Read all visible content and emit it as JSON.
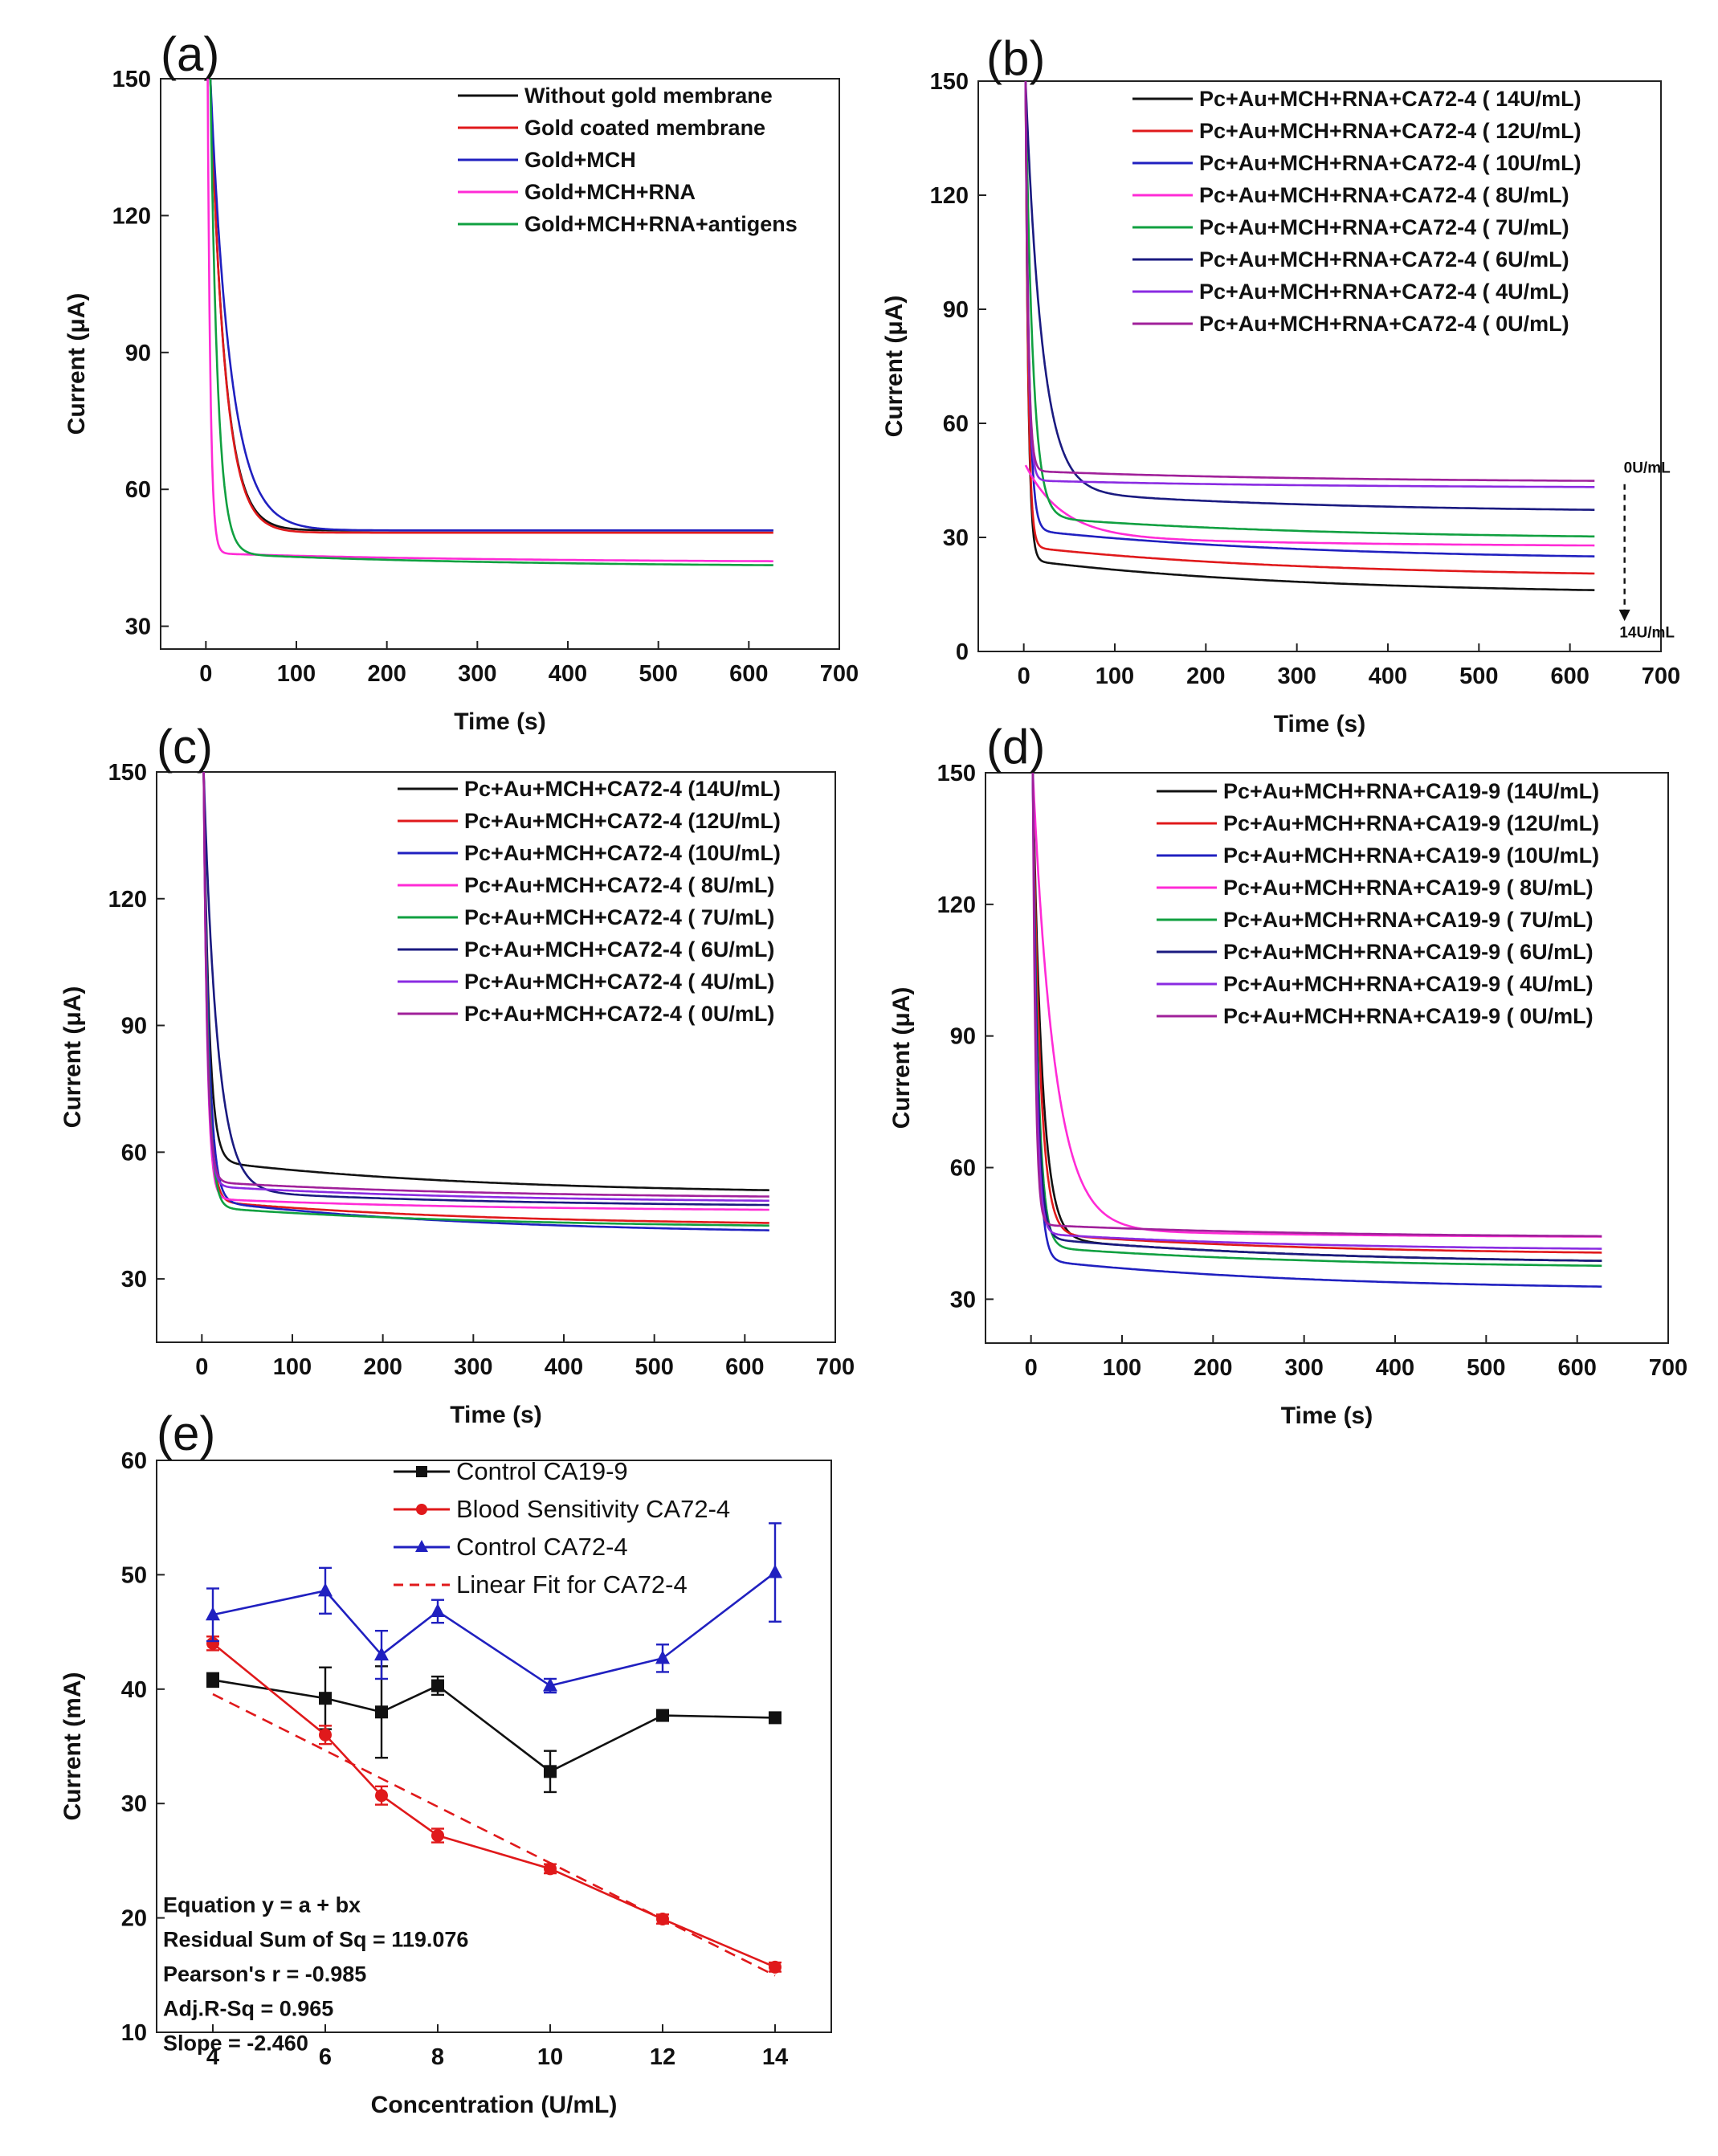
{
  "chart_data": [
    {
      "id": "a",
      "type": "line",
      "letter": "(a)",
      "xlabel": "Time (s)",
      "ylabel": "Current (μA)",
      "xlim": [
        -50,
        700
      ],
      "ylim": [
        25,
        150
      ],
      "xticks": [
        0,
        100,
        200,
        300,
        400,
        500,
        600,
        700
      ],
      "yticks": [
        30,
        60,
        90,
        120,
        150
      ],
      "legend_position": "top-right",
      "series": [
        {
          "name": "Without gold membrane",
          "color": "#111111",
          "x0": 5,
          "peak": 150,
          "plateau": 51,
          "tau": 16,
          "drift": 0
        },
        {
          "name": "Gold coated membrane",
          "color": "#e0191b",
          "x0": 5,
          "peak": 150,
          "plateau": 50.5,
          "tau": 16,
          "drift": 0
        },
        {
          "name": "Gold+MCH",
          "color": "#2020c0",
          "x0": 5,
          "peak": 150,
          "plateau": 51,
          "tau": 22,
          "drift": 0
        },
        {
          "name": "Gold+MCH+RNA",
          "color": "#ff2bd6",
          "x0": 2,
          "peak": 150,
          "plateau": 44,
          "tau": 3,
          "drift": 2
        },
        {
          "name": "Gold+MCH+RNA+antigens",
          "color": "#10a040",
          "x0": 5,
          "peak": 150,
          "plateau": 43,
          "tau": 8,
          "drift": 3
        }
      ]
    },
    {
      "id": "b",
      "type": "line",
      "letter": "(b)",
      "xlabel": "Time (s)",
      "ylabel": "Current (μA)",
      "xlim": [
        -50,
        700
      ],
      "ylim": [
        0,
        150
      ],
      "xticks": [
        0,
        100,
        200,
        300,
        400,
        500,
        600,
        700
      ],
      "yticks": [
        0,
        30,
        60,
        90,
        120,
        150
      ],
      "legend_position": "top-right",
      "annotation_top": "0U/mL",
      "annotation_bottom": "14U/mL",
      "series": [
        {
          "name": "Pc+Au+MCH+RNA+CA72-4 ( 14U/mL)",
          "color": "#111111",
          "x0": 2,
          "peak": 150,
          "plateau": 15,
          "tau": 3,
          "drift": 9
        },
        {
          "name": "Pc+Au+MCH+RNA+CA72-4 ( 12U/mL)",
          "color": "#e0191b",
          "x0": 2,
          "peak": 150,
          "plateau": 19.5,
          "tau": 3,
          "drift": 8
        },
        {
          "name": "Pc+Au+MCH+RNA+CA72-4 ( 10U/mL)",
          "color": "#2020c0",
          "x0": 2,
          "peak": 150,
          "plateau": 24,
          "tau": 4,
          "drift": 8
        },
        {
          "name": "Pc+Au+MCH+RNA+CA72-4 (  8U/mL)",
          "color": "#ff2bd6",
          "x0": 2,
          "peak": 49,
          "plateau": 27.5,
          "tau": 40,
          "drift": 3
        },
        {
          "name": "Pc+Au+MCH+RNA+CA72-4 (  7U/mL)",
          "color": "#10a040",
          "x0": 2,
          "peak": 150,
          "plateau": 29.5,
          "tau": 8,
          "drift": 6
        },
        {
          "name": "Pc+Au+MCH+RNA+CA72-4 (  6U/mL)",
          "color": "#1a1a80",
          "x0": 2,
          "peak": 150,
          "plateau": 36.5,
          "tau": 18,
          "drift": 6
        },
        {
          "name": "Pc+Au+MCH+RNA+CA72-4 (  4U/mL)",
          "color": "#8a2be2",
          "x0": 2,
          "peak": 150,
          "plateau": 43,
          "tau": 3,
          "drift": 2
        },
        {
          "name": "Pc+Au+MCH+RNA+CA72-4 (  0U/mL)",
          "color": "#a0209a",
          "x0": 2,
          "peak": 150,
          "plateau": 44.5,
          "tau": 3,
          "drift": 3
        }
      ]
    },
    {
      "id": "c",
      "type": "line",
      "letter": "(c)",
      "xlabel": "Time (s)",
      "ylabel": "Current (μA)",
      "xlim": [
        -50,
        700
      ],
      "ylim": [
        15,
        150
      ],
      "xticks": [
        0,
        100,
        200,
        300,
        400,
        500,
        600,
        700
      ],
      "yticks": [
        30,
        60,
        90,
        120,
        150
      ],
      "legend_position": "top-right",
      "series": [
        {
          "name": "Pc+Au+MCH+CA72-4 (14U/mL)",
          "color": "#111111",
          "x0": 2,
          "peak": 150,
          "plateau": 50,
          "tau": 6,
          "drift": 8
        },
        {
          "name": "Pc+Au+MCH+CA72-4 (12U/mL)",
          "color": "#e0191b",
          "x0": 2,
          "peak": 150,
          "plateau": 42.5,
          "tau": 5,
          "drift": 6
        },
        {
          "name": "Pc+Au+MCH+CA72-4 (10U/mL)",
          "color": "#2020c0",
          "x0": 2,
          "peak": 150,
          "plateau": 40.5,
          "tau": 6,
          "drift": 8
        },
        {
          "name": "Pc+Au+MCH+CA72-4 (  8U/mL)",
          "color": "#ff2bd6",
          "x0": 2,
          "peak": 150,
          "plateau": 46,
          "tau": 4,
          "drift": 3
        },
        {
          "name": "Pc+Au+MCH+CA72-4 (  7U/mL)",
          "color": "#10a040",
          "x0": 2,
          "peak": 150,
          "plateau": 42,
          "tau": 5,
          "drift": 5
        },
        {
          "name": "Pc+Au+MCH+CA72-4 (  6U/mL)",
          "color": "#1a1a80",
          "x0": 2,
          "peak": 150,
          "plateau": 47,
          "tau": 15,
          "drift": 4
        },
        {
          "name": "Pc+Au+MCH+CA72-4 (  4U/mL)",
          "color": "#8a2be2",
          "x0": 2,
          "peak": 150,
          "plateau": 48,
          "tau": 4,
          "drift": 4
        },
        {
          "name": "Pc+Au+MCH+CA72-4 (  0U/mL)",
          "color": "#a0209a",
          "x0": 2,
          "peak": 150,
          "plateau": 49,
          "tau": 4,
          "drift": 4
        }
      ]
    },
    {
      "id": "d",
      "type": "line",
      "letter": "(d)",
      "xlabel": "Time (s)",
      "ylabel": "Current (μA)",
      "xlim": [
        -50,
        700
      ],
      "ylim": [
        20,
        150
      ],
      "xticks": [
        0,
        100,
        200,
        300,
        400,
        500,
        600,
        700
      ],
      "yticks": [
        30,
        60,
        90,
        120,
        150
      ],
      "legend_position": "top-right",
      "series": [
        {
          "name": "Pc+Au+MCH+RNA+CA19-9 (14U/mL)",
          "color": "#111111",
          "x0": 2,
          "peak": 150,
          "plateau": 38,
          "tau": 10,
          "drift": 6
        },
        {
          "name": "Pc+Au+MCH+RNA+CA19-9 (12U/mL)",
          "color": "#e0191b",
          "x0": 2,
          "peak": 150,
          "plateau": 40,
          "tau": 8,
          "drift": 5
        },
        {
          "name": "Pc+Au+MCH+RNA+CA19-9 (10U/mL)",
          "color": "#2020c0",
          "x0": 2,
          "peak": 150,
          "plateau": 32,
          "tau": 5,
          "drift": 7
        },
        {
          "name": "Pc+Au+MCH+RNA+CA19-9 (  8U/mL)",
          "color": "#ff2bd6",
          "x0": 2,
          "peak": 150,
          "plateau": 44,
          "tau": 24,
          "drift": 2
        },
        {
          "name": "Pc+Au+MCH+RNA+CA19-9 (  7U/mL)",
          "color": "#10a040",
          "x0": 2,
          "peak": 150,
          "plateau": 37,
          "tau": 6,
          "drift": 5
        },
        {
          "name": "Pc+Au+MCH+RNA+CA19-9 (  6U/mL)",
          "color": "#1a1a80",
          "x0": 2,
          "peak": 150,
          "plateau": 38,
          "tau": 5,
          "drift": 6
        },
        {
          "name": "Pc+Au+MCH+RNA+CA19-9 (  4U/mL)",
          "color": "#8a2be2",
          "x0": 2,
          "peak": 150,
          "plateau": 41,
          "tau": 4,
          "drift": 4
        },
        {
          "name": "Pc+Au+MCH+RNA+CA19-9 (  0U/mL)",
          "color": "#a0209a",
          "x0": 2,
          "peak": 150,
          "plateau": 44,
          "tau": 3,
          "drift": 3
        }
      ]
    },
    {
      "id": "e",
      "type": "scatter",
      "letter": "(e)",
      "xlabel": "Concentration (U/mL)",
      "ylabel": "Current (mA)",
      "xlim": [
        3,
        15
      ],
      "ylim": [
        10,
        60
      ],
      "xticks": [
        4,
        6,
        8,
        10,
        12,
        14
      ],
      "yticks": [
        10,
        20,
        30,
        40,
        50,
        60
      ],
      "legend_position": "top-right",
      "x": [
        4,
        6,
        7,
        8,
        10,
        12,
        14
      ],
      "series": [
        {
          "name": "Control  CA19-9",
          "color": "#111111",
          "marker": "square",
          "values": [
            40.8,
            39.2,
            38.0,
            40.3,
            32.8,
            37.7,
            37.5
          ],
          "errors": [
            0.6,
            2.7,
            4.0,
            0.8,
            1.8,
            0.4,
            0.4
          ]
        },
        {
          "name": "Blood Sensitivity CA72-4",
          "color": "#e0191b",
          "marker": "circle",
          "values": [
            44.0,
            36.0,
            30.7,
            27.2,
            24.3,
            19.9,
            15.7
          ],
          "errors": [
            0.6,
            0.8,
            0.8,
            0.6,
            0.4,
            0.4,
            0.4
          ]
        },
        {
          "name": "Control   CA72-4",
          "color": "#2020c0",
          "marker": "triangle",
          "values": [
            46.5,
            48.6,
            43.0,
            46.8,
            40.3,
            42.7,
            50.2
          ],
          "errors": [
            2.3,
            2.0,
            2.1,
            1.0,
            0.6,
            1.2,
            4.3
          ]
        }
      ],
      "fit": {
        "name": "Linear Fit for  CA72-4",
        "color": "#e0191b",
        "slope": -2.46,
        "intercept": 49.4
      },
      "stats": [
        "Equation y = a + bx",
        "Residual Sum of Sq = 119.076",
        "Pearson's r = -0.985",
        "Adj.R-Sq = 0.965",
        "Slope = -2.460"
      ]
    }
  ]
}
